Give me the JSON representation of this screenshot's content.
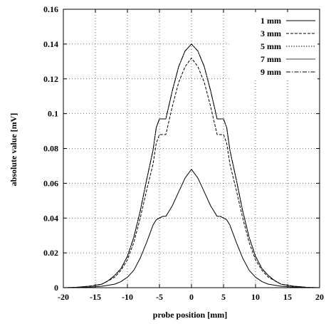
{
  "chart_data": {
    "type": "line",
    "title": "",
    "xlabel": "probe position [mm]",
    "ylabel": "absolute value [mV]",
    "xlim": [
      -20,
      20
    ],
    "ylim": [
      0,
      0.16
    ],
    "xticks": [
      -20,
      -15,
      -10,
      -5,
      0,
      5,
      10,
      15,
      20
    ],
    "yticks": [
      0,
      0.02,
      0.04,
      0.06,
      0.08,
      0.1,
      0.12,
      0.14,
      0.16
    ],
    "xtick_labels": [
      "-20",
      "-15",
      "-10",
      "-5",
      "0",
      "5",
      "10",
      "15",
      "20"
    ],
    "ytick_labels": [
      "0",
      "0.02",
      "0.04",
      "0.06",
      "0.08",
      "0.1",
      "0.12",
      "0.14",
      "0.16"
    ],
    "grid": true,
    "legend_position": "top-right",
    "series": [
      {
        "name": "1 mm",
        "dash": "solid",
        "x": [
          -20,
          -18,
          -16,
          -14,
          -12,
          -11,
          -10,
          -9,
          -8,
          -7,
          -6,
          -5.5,
          -5,
          -4.5,
          -4,
          -3,
          -2,
          -1,
          0,
          1,
          2,
          3,
          4,
          4.5,
          5,
          5.5,
          6,
          7,
          8,
          9,
          10,
          11,
          12,
          14,
          16,
          18,
          20
        ],
        "y": [
          0,
          0,
          0.0003,
          0.0008,
          0.002,
          0.0035,
          0.006,
          0.01,
          0.017,
          0.026,
          0.036,
          0.039,
          0.04,
          0.041,
          0.041,
          0.047,
          0.055,
          0.063,
          0.068,
          0.063,
          0.055,
          0.047,
          0.041,
          0.041,
          0.04,
          0.039,
          0.036,
          0.026,
          0.017,
          0.01,
          0.006,
          0.0035,
          0.002,
          0.0008,
          0.0003,
          0,
          0
        ]
      },
      {
        "name": "3 mm",
        "dash": "dashed",
        "x": [
          -20,
          -18,
          -16,
          -14,
          -13,
          -12,
          -11,
          -10,
          -9,
          -8,
          -7,
          -6,
          -5.5,
          -5,
          -4.5,
          -4,
          -3,
          -2,
          -1,
          0,
          1,
          2,
          3,
          4,
          4.5,
          5,
          5.5,
          6,
          7,
          8,
          9,
          10,
          11,
          12,
          13,
          14,
          16,
          18,
          20
        ],
        "y": [
          0,
          0.0002,
          0.0008,
          0.002,
          0.004,
          0.006,
          0.01,
          0.016,
          0.026,
          0.04,
          0.056,
          0.071,
          0.083,
          0.088,
          0.088,
          0.088,
          0.104,
          0.118,
          0.127,
          0.132,
          0.127,
          0.118,
          0.104,
          0.088,
          0.088,
          0.088,
          0.083,
          0.071,
          0.056,
          0.04,
          0.026,
          0.016,
          0.01,
          0.006,
          0.004,
          0.002,
          0.0008,
          0.0002,
          0
        ]
      },
      {
        "name": "5 mm",
        "dash": "dotted",
        "x": [
          -20,
          -18,
          -16,
          -14,
          -13,
          -12,
          -11,
          -10,
          -9,
          -8,
          -7,
          -6,
          -5.5,
          -5,
          -4.5,
          -4,
          -3,
          -2,
          -1,
          0,
          1,
          2,
          3,
          4,
          4.5,
          5,
          5.5,
          6,
          7,
          8,
          9,
          10,
          11,
          12,
          13,
          14,
          16,
          18,
          20
        ],
        "y": [
          0,
          0.0002,
          0.0008,
          0.002,
          0.004,
          0.007,
          0.011,
          0.018,
          0.029,
          0.044,
          0.062,
          0.079,
          0.092,
          0.097,
          0.097,
          0.097,
          0.113,
          0.127,
          0.136,
          0.14,
          0.136,
          0.127,
          0.113,
          0.097,
          0.097,
          0.097,
          0.092,
          0.079,
          0.062,
          0.044,
          0.029,
          0.018,
          0.011,
          0.007,
          0.004,
          0.002,
          0.0008,
          0.0002,
          0
        ]
      },
      {
        "name": "7 mm",
        "dash": "solid-thin",
        "x": [
          -20,
          -18,
          -16,
          -14,
          -13,
          -12,
          -11,
          -10,
          -9,
          -8,
          -7,
          -6,
          -5.5,
          -5,
          -4.5,
          -4,
          -3,
          -2,
          -1,
          0,
          1,
          2,
          3,
          4,
          4.5,
          5,
          5.5,
          6,
          7,
          8,
          9,
          10,
          11,
          12,
          13,
          14,
          16,
          18,
          20
        ],
        "y": [
          0,
          0.0002,
          0.0008,
          0.002,
          0.004,
          0.007,
          0.011,
          0.018,
          0.029,
          0.044,
          0.062,
          0.079,
          0.092,
          0.097,
          0.097,
          0.097,
          0.113,
          0.127,
          0.136,
          0.14,
          0.136,
          0.127,
          0.113,
          0.097,
          0.097,
          0.097,
          0.092,
          0.079,
          0.062,
          0.044,
          0.029,
          0.018,
          0.011,
          0.007,
          0.004,
          0.002,
          0.0008,
          0.0002,
          0
        ]
      },
      {
        "name": "9 mm",
        "dash": "dash-dot",
        "x": [
          -20,
          -18,
          -16,
          -14,
          -13,
          -12,
          -11,
          -10,
          -9,
          -8,
          -7,
          -6,
          -5.5,
          -5,
          -4.5,
          -4,
          -3,
          -2,
          -1,
          0,
          1,
          2,
          3,
          4,
          4.5,
          5,
          5.5,
          6,
          7,
          8,
          9,
          10,
          11,
          12,
          13,
          14,
          16,
          18,
          20
        ],
        "y": [
          0,
          0.0002,
          0.0008,
          0.002,
          0.004,
          0.007,
          0.011,
          0.018,
          0.029,
          0.044,
          0.062,
          0.079,
          0.092,
          0.097,
          0.097,
          0.097,
          0.113,
          0.127,
          0.136,
          0.14,
          0.136,
          0.127,
          0.113,
          0.097,
          0.097,
          0.097,
          0.092,
          0.079,
          0.062,
          0.044,
          0.029,
          0.018,
          0.011,
          0.007,
          0.004,
          0.002,
          0.0008,
          0.0002,
          0
        ]
      }
    ]
  }
}
